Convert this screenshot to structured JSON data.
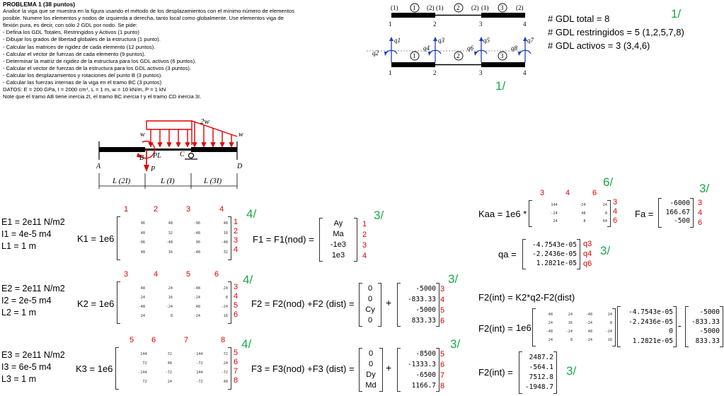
{
  "problem": {
    "title": "PROBLEMA 1 (38 puntos)",
    "intro_1": "Analice la viga que se muestra en la figura usando el método de los desplazamientos con el mínimo número de elementos",
    "intro_2": "posible. Numere los elementos y nodos de izquierda a derecha, tanto local como globalmente. Use elementos viga de",
    "intro_3": "flexión pura, es decir, con sólo 2 GDL por nodo. Se pide:",
    "items": [
      "- Defina los GDL Totales, Restringidos y Activos (1 punto)",
      "- Dibujar los grados de libertad globales de la estructura (1 punto).",
      "- Calcular las matrices de rigidez de cada elemento (12 puntos).",
      "- Calcular el vector de fuerzas de cada elemento (9 puntos).",
      "- Determinar la matriz de rigidez de la estructura para los GDL activos (6 puntos).",
      "- Calcular el vector de fuerzas de la estructura para los GDL activos (3 puntos).",
      "- Calcular los desplazamientos y rotaciones del punto B (3 puntos).",
      "- Calcular las fuerzas internas de la viga en el tramo BC (3 puntos)"
    ],
    "datos": "DATOS: E = 200 GPa, I = 2000 cm⁴, L = 1 m, w = 10 kN/m, P = 1 kN",
    "note": "Note que el tramo AB tiene inercia 2I, el tramo BC inercia I y el tramo CD inercia 3I."
  },
  "beam": {
    "load_2w": "2w",
    "load_w_left": "w",
    "load_w_right": "w",
    "label_A": "A",
    "label_B": "B",
    "label_C": "C",
    "label_D": "D",
    "label_PL": "PL",
    "label_P": "P",
    "span_1": "L (2I)",
    "span_2": "L (I)",
    "span_3": "L (3I)"
  },
  "topo": {
    "elem_1": "1",
    "elem_2": "2",
    "elem_3": "3",
    "local_1a": "(1)",
    "local_2a": "(2)",
    "local_1b": "(1)",
    "local_2b": "(2)",
    "local_1c": "(1)",
    "local_2c": "(2)",
    "node_1": "1",
    "node_2": "2",
    "node_3": "3",
    "node_4": "4"
  },
  "dof": {
    "q1": "q1",
    "q2": "q2",
    "q3": "q3",
    "q4": "q4",
    "q5": "q5",
    "q6": "q6",
    "q7": "q7",
    "q8": "q8",
    "elem_1": "1",
    "elem_2": "2",
    "elem_3": "3",
    "node_1": "1",
    "node_2": "2",
    "node_3": "3",
    "node_4": "4"
  },
  "gdl": {
    "total": "# GDL total = 8",
    "restringidos": "# GDL restringidos = 5 (1,2,5,7,8)",
    "activos": "# GDL activos = 3 (3,4,6)",
    "score_a": "1/",
    "score_b": "1/"
  },
  "elements": [
    {
      "E": "E1 = 2e11 N/m2",
      "I": "I1 = 4e-5 m4",
      "L": "L1 = 1 m",
      "K_label": "K1 = 1e6",
      "dofs": [
        "1",
        "2",
        "3",
        "4"
      ],
      "K": [
        [
          "96",
          "48",
          "-96",
          "48"
        ],
        [
          "48",
          "32",
          "-48",
          "16"
        ],
        [
          "-96",
          "-48",
          "96",
          "-48"
        ],
        [
          "48",
          "16",
          "-48",
          "32"
        ]
      ],
      "K_score": "4/",
      "F_label": "F1 = F1(nod) =",
      "F_nod": [
        "Ay",
        "Ma",
        "-1e3",
        "1e3"
      ],
      "F_dofs": [
        "1",
        "2",
        "3",
        "4"
      ],
      "F_score": "3/"
    },
    {
      "E": "E2 = 2e11 N/m2",
      "I": "I2 = 2e-5 m4",
      "L": "L2 = 1 m",
      "K_label": "K2 = 1e6",
      "dofs": [
        "3",
        "4",
        "5",
        "6"
      ],
      "K": [
        [
          "48",
          "24",
          "-48",
          "24"
        ],
        [
          "24",
          "16",
          "-24",
          "8"
        ],
        [
          "-48",
          "-24",
          "48",
          "-24"
        ],
        [
          "24",
          "8",
          "-24",
          "16"
        ]
      ],
      "K_score": "4/",
      "F_label": "F2 = F2(nod) +F2 (dist) =",
      "F_nod": [
        "0",
        "0",
        "Cy",
        "0"
      ],
      "F_dist": [
        "-5000",
        "-833.33",
        "-5000",
        "833.33"
      ],
      "F_dofs": [
        "3",
        "4",
        "5",
        "6"
      ],
      "F_score": "3/"
    },
    {
      "E": "E3 = 2e11 N/m2",
      "I": "I3 = 6e-5 m4",
      "L": "L3 = 1 m",
      "K_label": "K3 = 1e6",
      "dofs": [
        "5",
        "6",
        "7",
        "8"
      ],
      "K": [
        [
          "144",
          "72",
          "-144",
          "72"
        ],
        [
          "72",
          "48",
          "-72",
          "24"
        ],
        [
          "-144",
          "-72",
          "144",
          "-72"
        ],
        [
          "72",
          "24",
          "-72",
          "48"
        ]
      ],
      "K_score": "4/",
      "F_label": "F3 = F3(nod) +F3 (dist) =",
      "F_nod": [
        "0",
        "0",
        "Dy",
        "Md"
      ],
      "F_dist": [
        "-8500",
        "-1333.3",
        "-6500",
        "1166.7"
      ],
      "F_dofs": [
        "5",
        "6",
        "7",
        "8"
      ],
      "F_score": "3/"
    }
  ],
  "kaa": {
    "label": "Kaa = 1e6 *",
    "dofs": [
      "3",
      "4",
      "6"
    ],
    "K": [
      [
        "144",
        "-24",
        "24"
      ],
      [
        "-24",
        "48",
        "8"
      ],
      [
        "24",
        "8",
        "64"
      ]
    ],
    "score": "6/"
  },
  "fa": {
    "label": "Fa =",
    "values": [
      "-6000",
      "166.67",
      "-500"
    ],
    "dofs": [
      "3",
      "4",
      "6"
    ],
    "score": "3/"
  },
  "qa": {
    "label": "qa =",
    "values": [
      "-4.7543e-05",
      "-2.2436e-05",
      "1.2821e-05"
    ],
    "dofs": [
      "q3",
      "q4",
      "q6"
    ],
    "score": "3/"
  },
  "fint": {
    "formula": "F2(int) = K2*q2-F2(dist)",
    "label": "F2(int) =",
    "factor": "1e6",
    "K": [
      [
        "48",
        "24",
        "-48",
        "24"
      ],
      [
        "24",
        "16",
        "-24",
        "8"
      ],
      [
        "-48",
        "-24",
        "48",
        "-24"
      ],
      [
        "24",
        "8",
        "-24",
        "16"
      ]
    ],
    "q2": [
      "-4.7543e-05",
      "-2.2436e-05",
      "0",
      "1.2821e-05"
    ],
    "minus": "-",
    "f2dist": [
      "-5000",
      "-833.33",
      "-5000",
      "833.33"
    ],
    "result_label": "F2(int) =",
    "result": [
      "2487.2",
      "-564.1",
      "7512.8",
      "-1948.7"
    ],
    "score": "3/"
  },
  "colors": {
    "red": "#e00000",
    "green": "#1aa84a",
    "dof_arrow": "#1a3fbf"
  }
}
